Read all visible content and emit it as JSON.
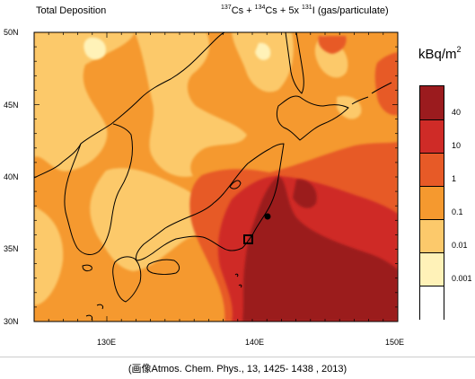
{
  "header": {
    "title_left": "Total Deposition",
    "species": {
      "iso1": "137",
      "el1": "Cs + ",
      "iso2": "134",
      "el2": "Cs + 5x ",
      "iso3": "131",
      "el3": "I (gas/particulate)"
    }
  },
  "axes": {
    "lat_labels": [
      "50N",
      "45N",
      "40N",
      "35N",
      "30N"
    ],
    "lon_labels": [
      "130E",
      "140E",
      "150E"
    ]
  },
  "legend": {
    "unit_base": "kBq/m",
    "unit_exp": "2",
    "ticks": [
      "40",
      "10",
      "1",
      "0.1",
      "0.01",
      "0.001"
    ],
    "colors": [
      "#9b1b1e",
      "#cf2b27",
      "#e75a27",
      "#f5992f",
      "#fcc96b",
      "#fff2b8",
      "#ffffff"
    ]
  },
  "markers": {
    "plant": "power-plant-dot",
    "region": "tokyo-box"
  },
  "caption": "(画像Atmos. Chem. Phys., 13, 1425- 1438 , 2013)"
}
